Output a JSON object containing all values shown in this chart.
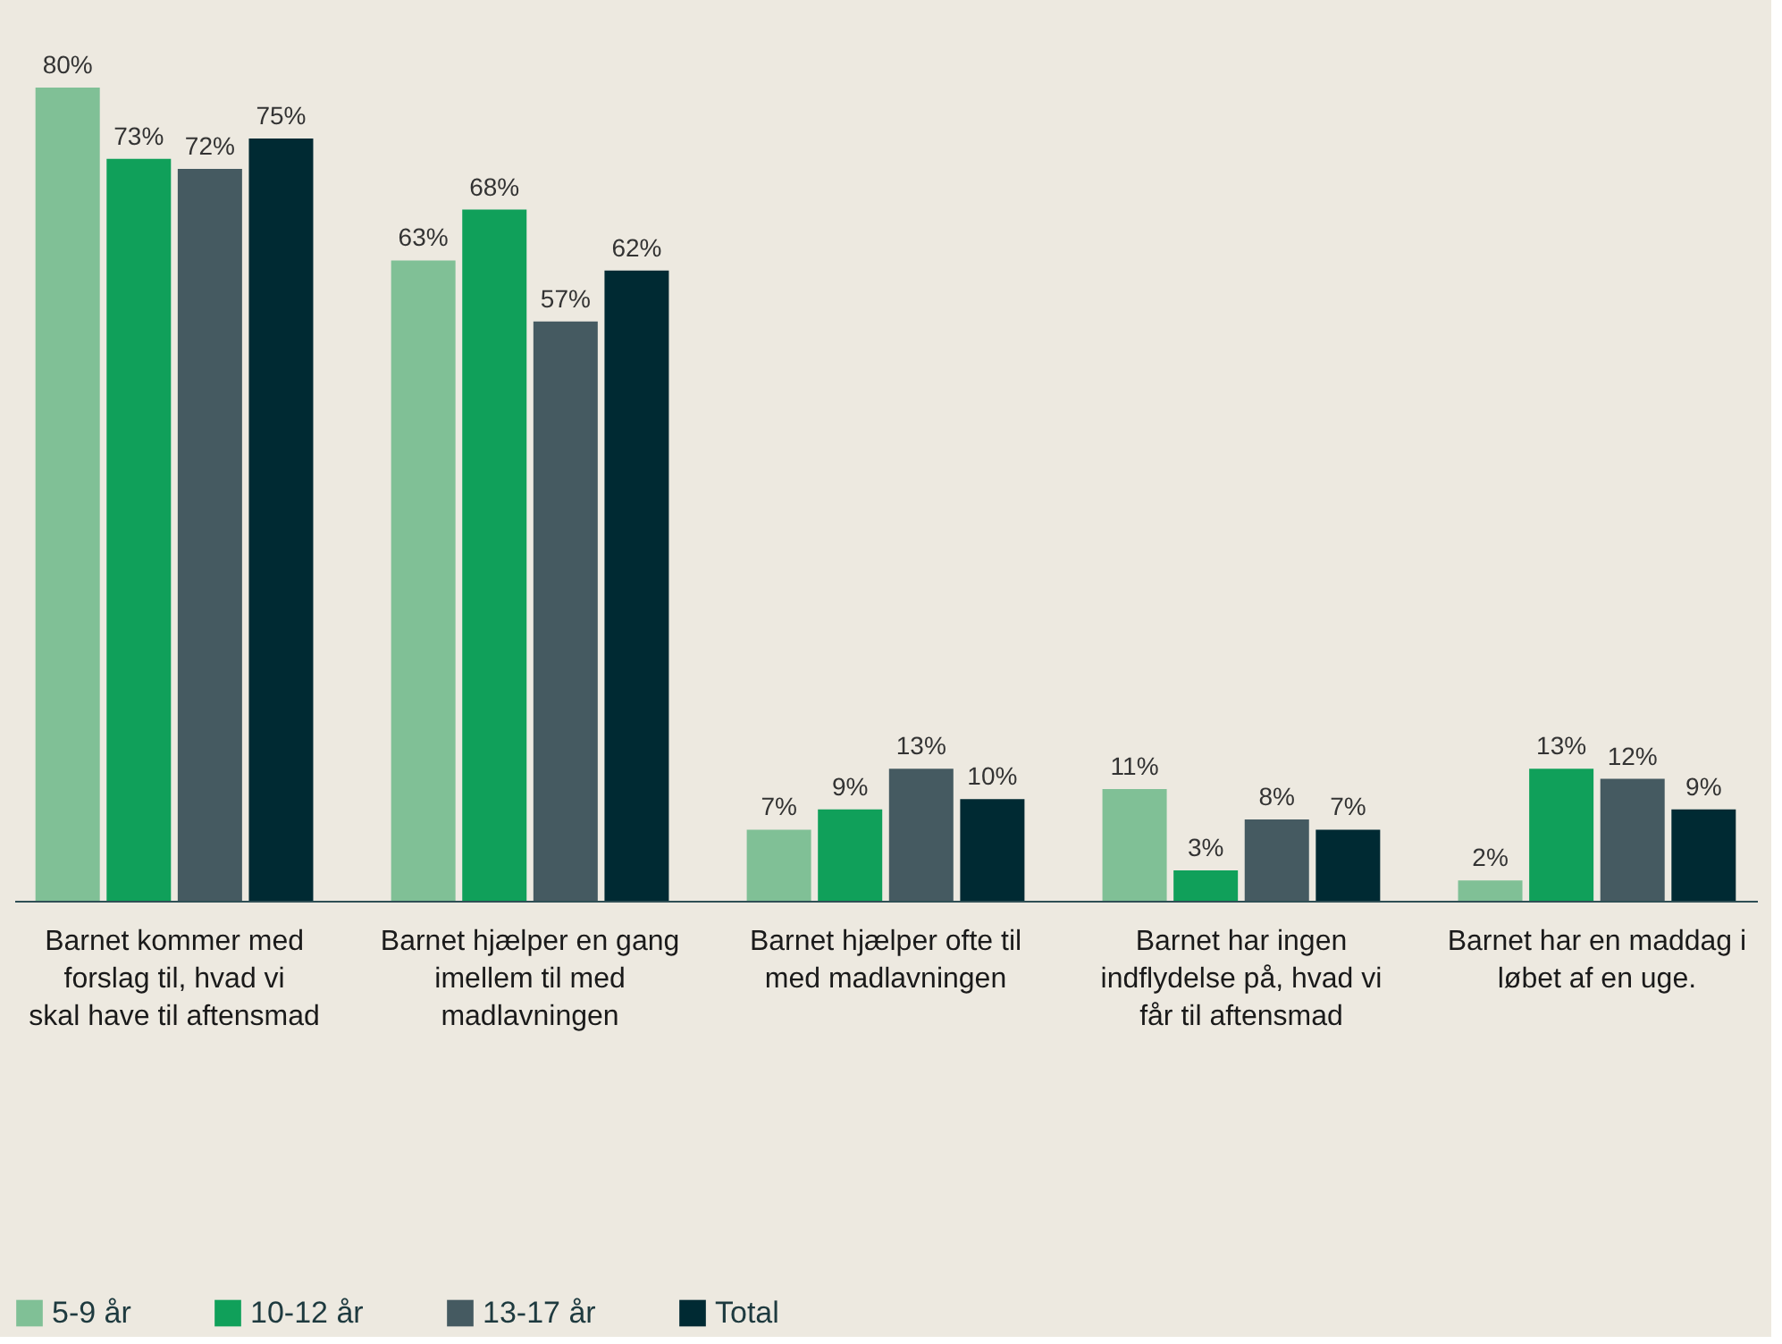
{
  "chart_data": {
    "type": "bar",
    "categories": [
      "Barnet kommer med forslag til, hvad vi skal have til aftensmad",
      "Barnet hjælper en gang imellem til med madlavningen",
      "Barnet hjælper ofte til med madlavningen",
      "Barnet har ingen indflydelse på, hvad vi får til aftensmad",
      "Barnet har en maddag i løbet af en uge."
    ],
    "series": [
      {
        "name": "5-9 år",
        "color": "#80c096",
        "values": [
          80,
          63,
          7,
          11,
          2
        ],
        "value_labels": [
          "80%",
          "63%",
          "7%",
          "11%",
          "2%"
        ]
      },
      {
        "name": "10-12 år",
        "color": "#10a05a",
        "values": [
          73,
          68,
          9,
          3,
          13
        ],
        "value_labels": [
          "73%",
          "68%",
          "9%",
          "3%",
          "13%"
        ]
      },
      {
        "name": "13-17 år",
        "color": "#455a61",
        "values": [
          72,
          57,
          13,
          8,
          12
        ],
        "value_labels": [
          "72%",
          "57%",
          "13%",
          "8%",
          "12%"
        ]
      },
      {
        "name": "Total",
        "color": "#002a33",
        "values": [
          75,
          62,
          10,
          7,
          9
        ],
        "value_labels": [
          "75%",
          "62%",
          "10%",
          "7%",
          "9%"
        ]
      }
    ],
    "legend": "bottom",
    "grid": false
  }
}
